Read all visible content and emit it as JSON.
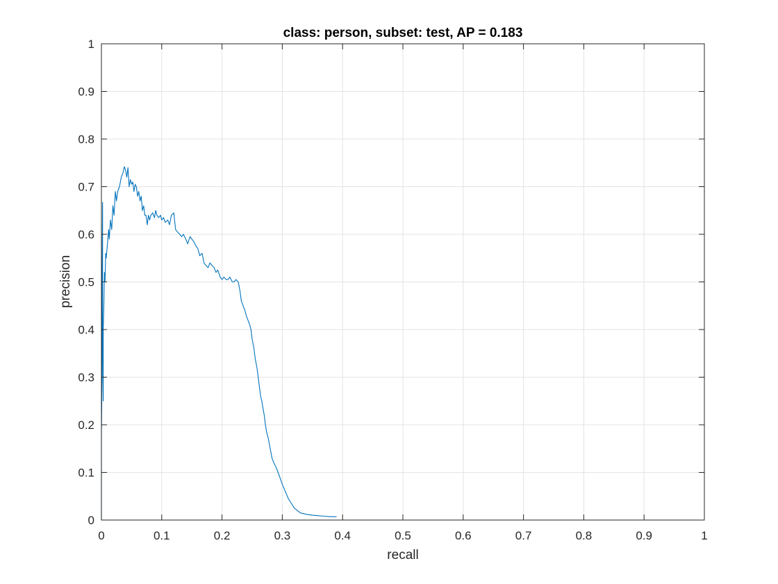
{
  "chart_data": {
    "type": "line",
    "title": "class: person, subset: test, AP = 0.183",
    "xlabel": "recall",
    "ylabel": "precision",
    "xlim": [
      0,
      1
    ],
    "ylim": [
      0,
      1
    ],
    "xticks": [
      "0",
      "0.1",
      "0.2",
      "0.3",
      "0.4",
      "0.5",
      "0.6",
      "0.7",
      "0.8",
      "0.9",
      "1"
    ],
    "yticks": [
      "0",
      "0.1",
      "0.2",
      "0.3",
      "0.4",
      "0.5",
      "0.6",
      "0.7",
      "0.8",
      "0.9",
      "1"
    ],
    "grid": true,
    "box": true,
    "line_color": "#0072BD",
    "series": [
      {
        "x": [
          0.0,
          0.0,
          0.001,
          0.001,
          0.002,
          0.002,
          0.003,
          0.003,
          0.004,
          0.005,
          0.006,
          0.007,
          0.008,
          0.01,
          0.012,
          0.013,
          0.015,
          0.017,
          0.019,
          0.021,
          0.023,
          0.025,
          0.027,
          0.03,
          0.033,
          0.036,
          0.038,
          0.04,
          0.042,
          0.044,
          0.046,
          0.048,
          0.05,
          0.052,
          0.054,
          0.056,
          0.058,
          0.06,
          0.062,
          0.064,
          0.066,
          0.068,
          0.07,
          0.072,
          0.074,
          0.076,
          0.078,
          0.08,
          0.082,
          0.085,
          0.088,
          0.09,
          0.092,
          0.095,
          0.098,
          0.1,
          0.103,
          0.106,
          0.11,
          0.113,
          0.116,
          0.12,
          0.123,
          0.126,
          0.13,
          0.133,
          0.136,
          0.14,
          0.143,
          0.147,
          0.15,
          0.153,
          0.157,
          0.16,
          0.163,
          0.167,
          0.17,
          0.173,
          0.177,
          0.18,
          0.183,
          0.187,
          0.19,
          0.193,
          0.197,
          0.2,
          0.203,
          0.207,
          0.21,
          0.213,
          0.217,
          0.22,
          0.223,
          0.227,
          0.23,
          0.232,
          0.235,
          0.238,
          0.24,
          0.243,
          0.246,
          0.248,
          0.25,
          0.253,
          0.255,
          0.258,
          0.26,
          0.262,
          0.264,
          0.266,
          0.268,
          0.27,
          0.272,
          0.274,
          0.277,
          0.28,
          0.283,
          0.286,
          0.29,
          0.293,
          0.296,
          0.3,
          0.305,
          0.31,
          0.315,
          0.32,
          0.325,
          0.33,
          0.34,
          0.35,
          0.36,
          0.37,
          0.38,
          0.39
        ],
        "y": [
          0.0,
          0.18,
          0.3,
          0.5,
          0.667,
          0.4,
          0.25,
          0.4,
          0.45,
          0.52,
          0.5,
          0.56,
          0.55,
          0.58,
          0.61,
          0.59,
          0.63,
          0.61,
          0.66,
          0.64,
          0.69,
          0.67,
          0.69,
          0.7,
          0.72,
          0.73,
          0.742,
          0.735,
          0.72,
          0.74,
          0.7,
          0.715,
          0.705,
          0.71,
          0.69,
          0.705,
          0.7,
          0.68,
          0.69,
          0.67,
          0.68,
          0.65,
          0.66,
          0.64,
          0.64,
          0.62,
          0.64,
          0.63,
          0.64,
          0.645,
          0.635,
          0.65,
          0.64,
          0.635,
          0.64,
          0.63,
          0.635,
          0.625,
          0.63,
          0.62,
          0.64,
          0.645,
          0.61,
          0.605,
          0.6,
          0.595,
          0.6,
          0.59,
          0.58,
          0.595,
          0.59,
          0.585,
          0.575,
          0.57,
          0.555,
          0.56,
          0.54,
          0.535,
          0.53,
          0.54,
          0.535,
          0.53,
          0.52,
          0.525,
          0.51,
          0.505,
          0.51,
          0.505,
          0.505,
          0.51,
          0.5,
          0.5,
          0.505,
          0.5,
          0.48,
          0.46,
          0.45,
          0.44,
          0.43,
          0.42,
          0.41,
          0.4,
          0.38,
          0.36,
          0.34,
          0.32,
          0.3,
          0.28,
          0.26,
          0.25,
          0.235,
          0.22,
          0.2,
          0.185,
          0.17,
          0.15,
          0.13,
          0.12,
          0.11,
          0.1,
          0.09,
          0.075,
          0.06,
          0.045,
          0.035,
          0.025,
          0.02,
          0.015,
          0.012,
          0.01,
          0.009,
          0.008,
          0.007,
          0.007
        ]
      }
    ]
  }
}
